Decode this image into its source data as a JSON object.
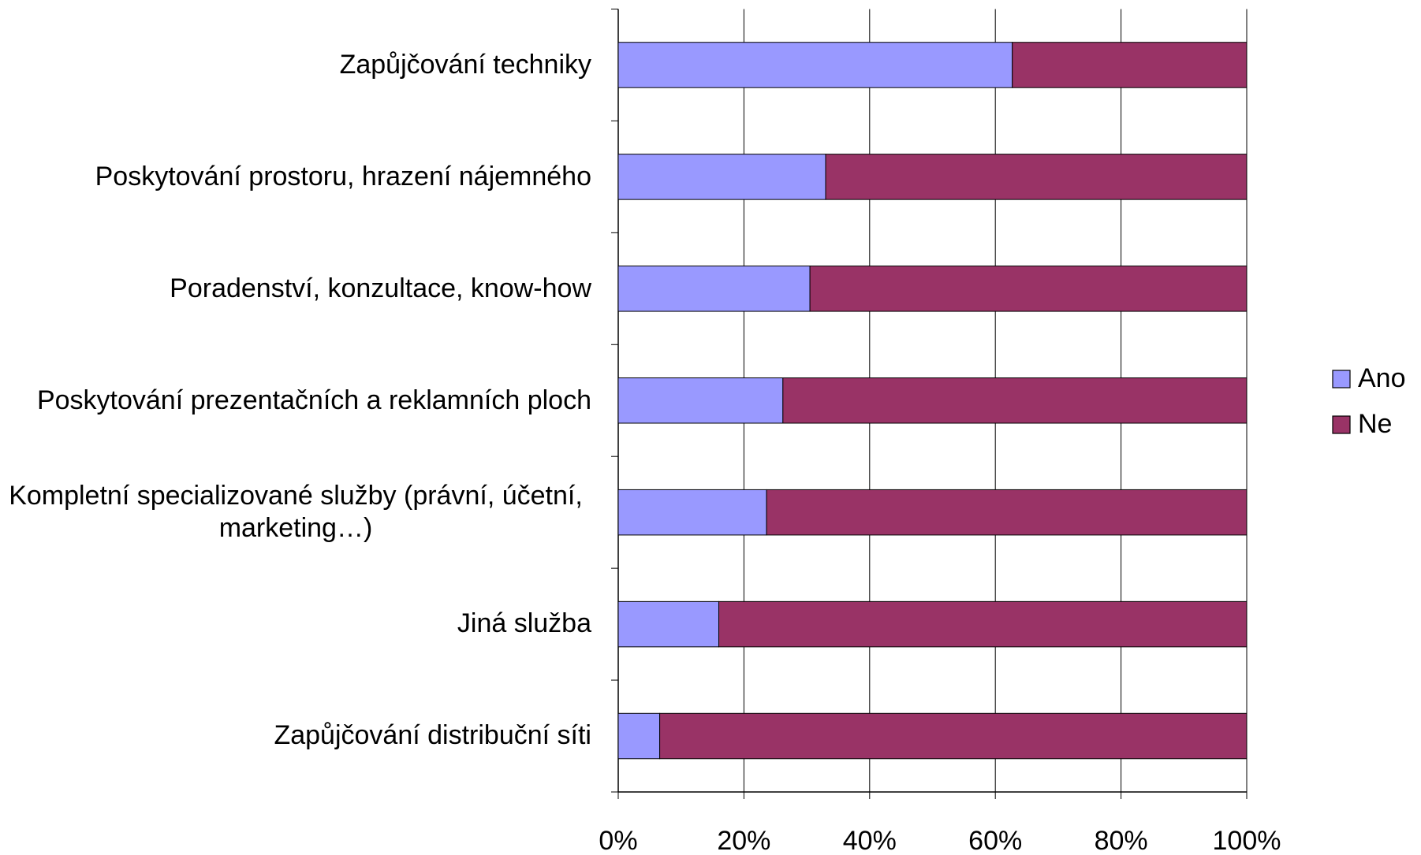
{
  "chart_data": {
    "type": "stacked_bar_horizontal",
    "categories": [
      "Zapůjčování techniky",
      "Poskytování prostoru, hrazení nájemného",
      "Poradenství, konzultace, know-how",
      "Poskytování prezentačních a reklamních ploch",
      "Kompletní specializované služby (právní, účetní, marketing…)",
      "Jiná služba",
      "Zapůjčování distribuční síti"
    ],
    "series": [
      {
        "name": "Ano",
        "color": "#9999ff",
        "values": [
          62.7,
          33.0,
          30.5,
          26.2,
          23.6,
          16.0,
          6.6
        ]
      },
      {
        "name": "Ne",
        "color": "#993366",
        "values": [
          37.3,
          67.0,
          69.5,
          73.8,
          76.4,
          84.0,
          93.4
        ]
      }
    ],
    "xlim": [
      0,
      100
    ],
    "xticks": [
      {
        "value": 0,
        "label": "0%"
      },
      {
        "value": 20,
        "label": "20%"
      },
      {
        "value": 40,
        "label": "40%"
      },
      {
        "value": 60,
        "label": "60%"
      },
      {
        "value": 80,
        "label": "80%"
      },
      {
        "value": 100,
        "label": "100%"
      }
    ],
    "grid": true,
    "legend": "right"
  }
}
